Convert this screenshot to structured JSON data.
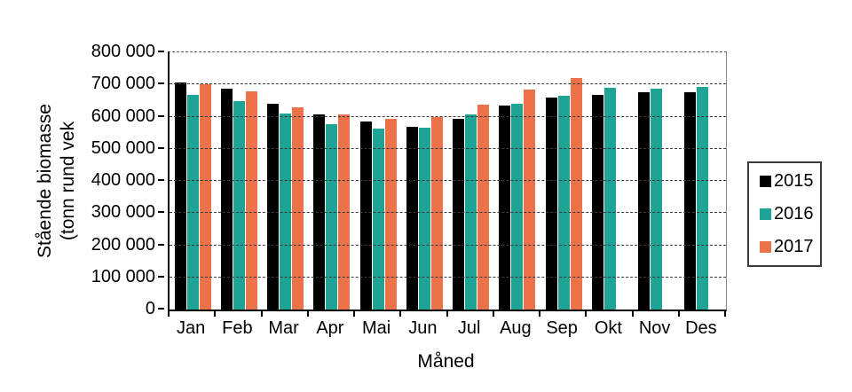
{
  "chart_data": {
    "type": "bar",
    "title": "",
    "xlabel": "Måned",
    "ylabel_line1": "Stående biomasse",
    "ylabel_line2": "(tonn rund vek",
    "categories": [
      "Jan",
      "Feb",
      "Mar",
      "Apr",
      "Mai",
      "Jun",
      "Jul",
      "Aug",
      "Sep",
      "Okt",
      "Nov",
      "Des"
    ],
    "series": [
      {
        "name": "2015",
        "color": "#000000",
        "values": [
          705000,
          688000,
          639000,
          607000,
          584000,
          568000,
          593000,
          635000,
          658000,
          669000,
          677000,
          677000
        ]
      },
      {
        "name": "2016",
        "color": "#1FA395",
        "values": [
          667000,
          647000,
          611000,
          577000,
          563000,
          566000,
          606000,
          641000,
          664000,
          689000,
          687000,
          692000
        ]
      },
      {
        "name": "2017",
        "color": "#EC7249",
        "values": [
          701000,
          679000,
          630000,
          606000,
          593000,
          600000,
          638000,
          684000,
          720000,
          null,
          null,
          null
        ]
      }
    ],
    "ylim": [
      0,
      800000
    ],
    "ytick_step": 100000,
    "ytick_labels": [
      "0",
      "100 000",
      "200 000",
      "300 000",
      "400 000",
      "500 000",
      "600 000",
      "700 000",
      "800 000"
    ],
    "grid": "horizontal-dashed",
    "legend_position": "right-outside"
  }
}
